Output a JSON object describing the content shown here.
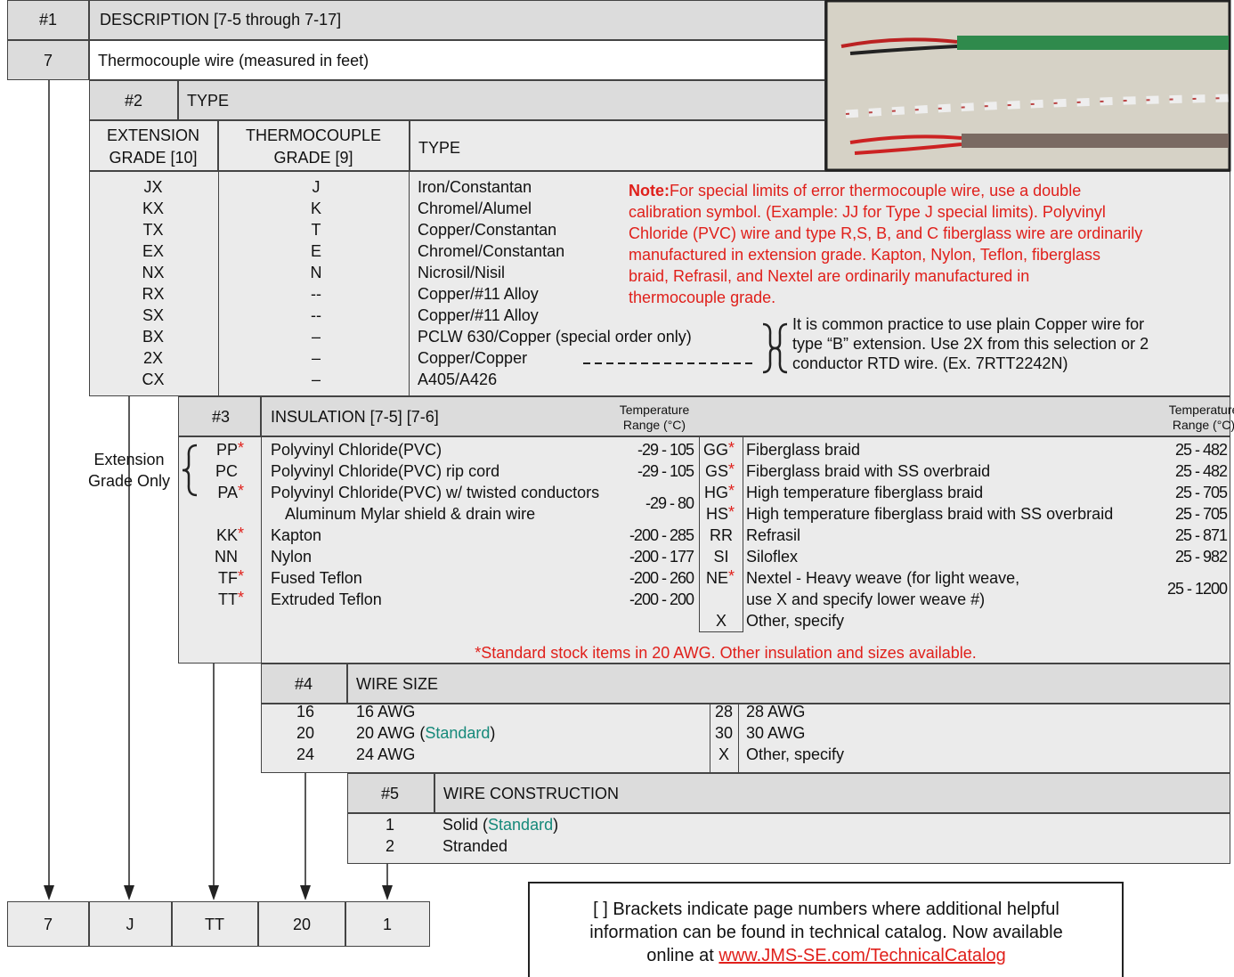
{
  "section1": {
    "number": "#1",
    "title": "DESCRIPTION  [7-5 through 7-17]",
    "code": "7",
    "description": "Thermocouple wire (measured in feet)"
  },
  "section2": {
    "number": "#2",
    "title": "TYPE",
    "headers": [
      [
        "EXTENSION",
        "GRADE  [10]"
      ],
      [
        "THERMOCOUPLE",
        "GRADE  [9]"
      ],
      [
        "TYPE"
      ]
    ],
    "rows": [
      [
        "JX",
        "J",
        "Iron/Constantan"
      ],
      [
        "KX",
        "K",
        "Chromel/Alumel"
      ],
      [
        "TX",
        "T",
        "Copper/Constantan"
      ],
      [
        "EX",
        "E",
        "Chromel/Constantan"
      ],
      [
        "NX",
        "N",
        "Nicrosil/Nisil"
      ],
      [
        "RX",
        "--",
        "Copper/#11 Alloy"
      ],
      [
        "SX",
        "--",
        "Copper/#11 Alloy"
      ],
      [
        "BX",
        "–",
        "PCLW 630/Copper (special order only)"
      ],
      [
        "2X",
        "–",
        "Copper/Copper"
      ],
      [
        "CX",
        "–",
        "A405/A426"
      ]
    ],
    "note_label": "Note:",
    "note_lines": [
      "For special limits of error thermocouple wire, use a double",
      "calibration symbol. (Example: JJ for Type J special limits). Polyvinyl",
      "Chloride (PVC) wire and type R,S, B, and C fiberglass wire are ordinarily",
      "manufactured in extension grade. Kapton, Nylon, Teflon, fiberglass",
      "braid, Refrasil, and Nextel are ordinarily manufactured in",
      "thermocouple grade."
    ],
    "brace_note_lines": [
      "It is common practice to use plain Copper wire for",
      "type “B” extension. Use 2X from this selection or 2",
      "conductor RTD wire. (Ex. 7RTT2242N)"
    ]
  },
  "section3": {
    "number": "#3",
    "title": "INSULATION [7-5] [7-6]",
    "temp_header": [
      "Temperature",
      "Range (°C)"
    ],
    "extension_label": [
      "Extension",
      "Grade Only"
    ],
    "left_rows": [
      {
        "code": "PP",
        "star": "*",
        "name": "Polyvinyl Chloride(PVC)",
        "range": "-29 - 105"
      },
      {
        "code": "PC",
        "name": "Polyvinyl Chloride(PVC) rip cord",
        "range": "-29 - 105"
      },
      {
        "code": "PA",
        "star": "*",
        "name": "Polyvinyl Chloride(PVC) w/ twisted conductors",
        "cont": "Aluminum Mylar shield & drain wire",
        "range": "-29 - 80"
      },
      {
        "code": "KK",
        "star": "*",
        "name": "Kapton",
        "range": "-200 - 285"
      },
      {
        "code": "NN",
        "name": "Nylon",
        "range": "-200 - 177"
      },
      {
        "code": "TF",
        "star": "*",
        "name": "Fused Teflon",
        "range": "-200 - 260"
      },
      {
        "code": "TT",
        "star": "*",
        "name": "Extruded Teflon",
        "range": "-200 - 200"
      }
    ],
    "right_rows": [
      {
        "code": "GG",
        "star": "*",
        "name": "Fiberglass braid",
        "range": "25 - 482"
      },
      {
        "code": "GS",
        "star": "*",
        "name": "Fiberglass braid with SS overbraid",
        "range": "25 - 482"
      },
      {
        "code": "HG",
        "star": "*",
        "name": "High temperature fiberglass braid",
        "range": "25 - 705"
      },
      {
        "code": "HS",
        "star": "*",
        "name": "High temperature fiberglass braid with SS overbraid",
        "range": "25 - 705"
      },
      {
        "code": "RR",
        "name": "Refrasil",
        "range": "25 - 871"
      },
      {
        "code": "SI",
        "name": "Siloflex",
        "range": "25 - 982"
      },
      {
        "code": "NE",
        "star": "*",
        "name": "Nextel - Heavy weave (for light weave,",
        "cont": "use X and specify lower weave #)",
        "range": "25 - 1200"
      },
      {
        "code": "X",
        "name": "Other, specify"
      }
    ],
    "footnote": "*Standard stock items in 20 AWG.  Other insulation and sizes available."
  },
  "section4": {
    "number": "#4",
    "title": "WIRE SIZE",
    "left_rows": [
      {
        "code": "16",
        "parts": [
          "16 AWG"
        ]
      },
      {
        "code": "20",
        "parts": [
          "20 AWG (",
          "Standard",
          ")"
        ]
      },
      {
        "code": "24",
        "parts": [
          "24 AWG"
        ]
      }
    ],
    "right_rows": [
      {
        "code": "28",
        "parts": [
          "28 AWG"
        ]
      },
      {
        "code": "30",
        "parts": [
          "30 AWG"
        ]
      },
      {
        "code": "X",
        "parts": [
          "Other, specify"
        ]
      }
    ]
  },
  "section5": {
    "number": "#5",
    "title": "WIRE CONSTRUCTION",
    "rows": [
      {
        "code": "1",
        "parts": [
          "Solid (",
          "Standard",
          ")"
        ]
      },
      {
        "code": "2",
        "parts": [
          "Stranded"
        ]
      }
    ]
  },
  "example": [
    "7",
    "J",
    "TT",
    "20",
    "1"
  ],
  "info_box": {
    "lines": [
      "[ ] Brackets indicate page numbers where additional helpful",
      "information can be found in technical catalog. Now available"
    ],
    "last_prefix": "online at ",
    "link": "www.JMS-SE.com/TechnicalCatalog"
  }
}
